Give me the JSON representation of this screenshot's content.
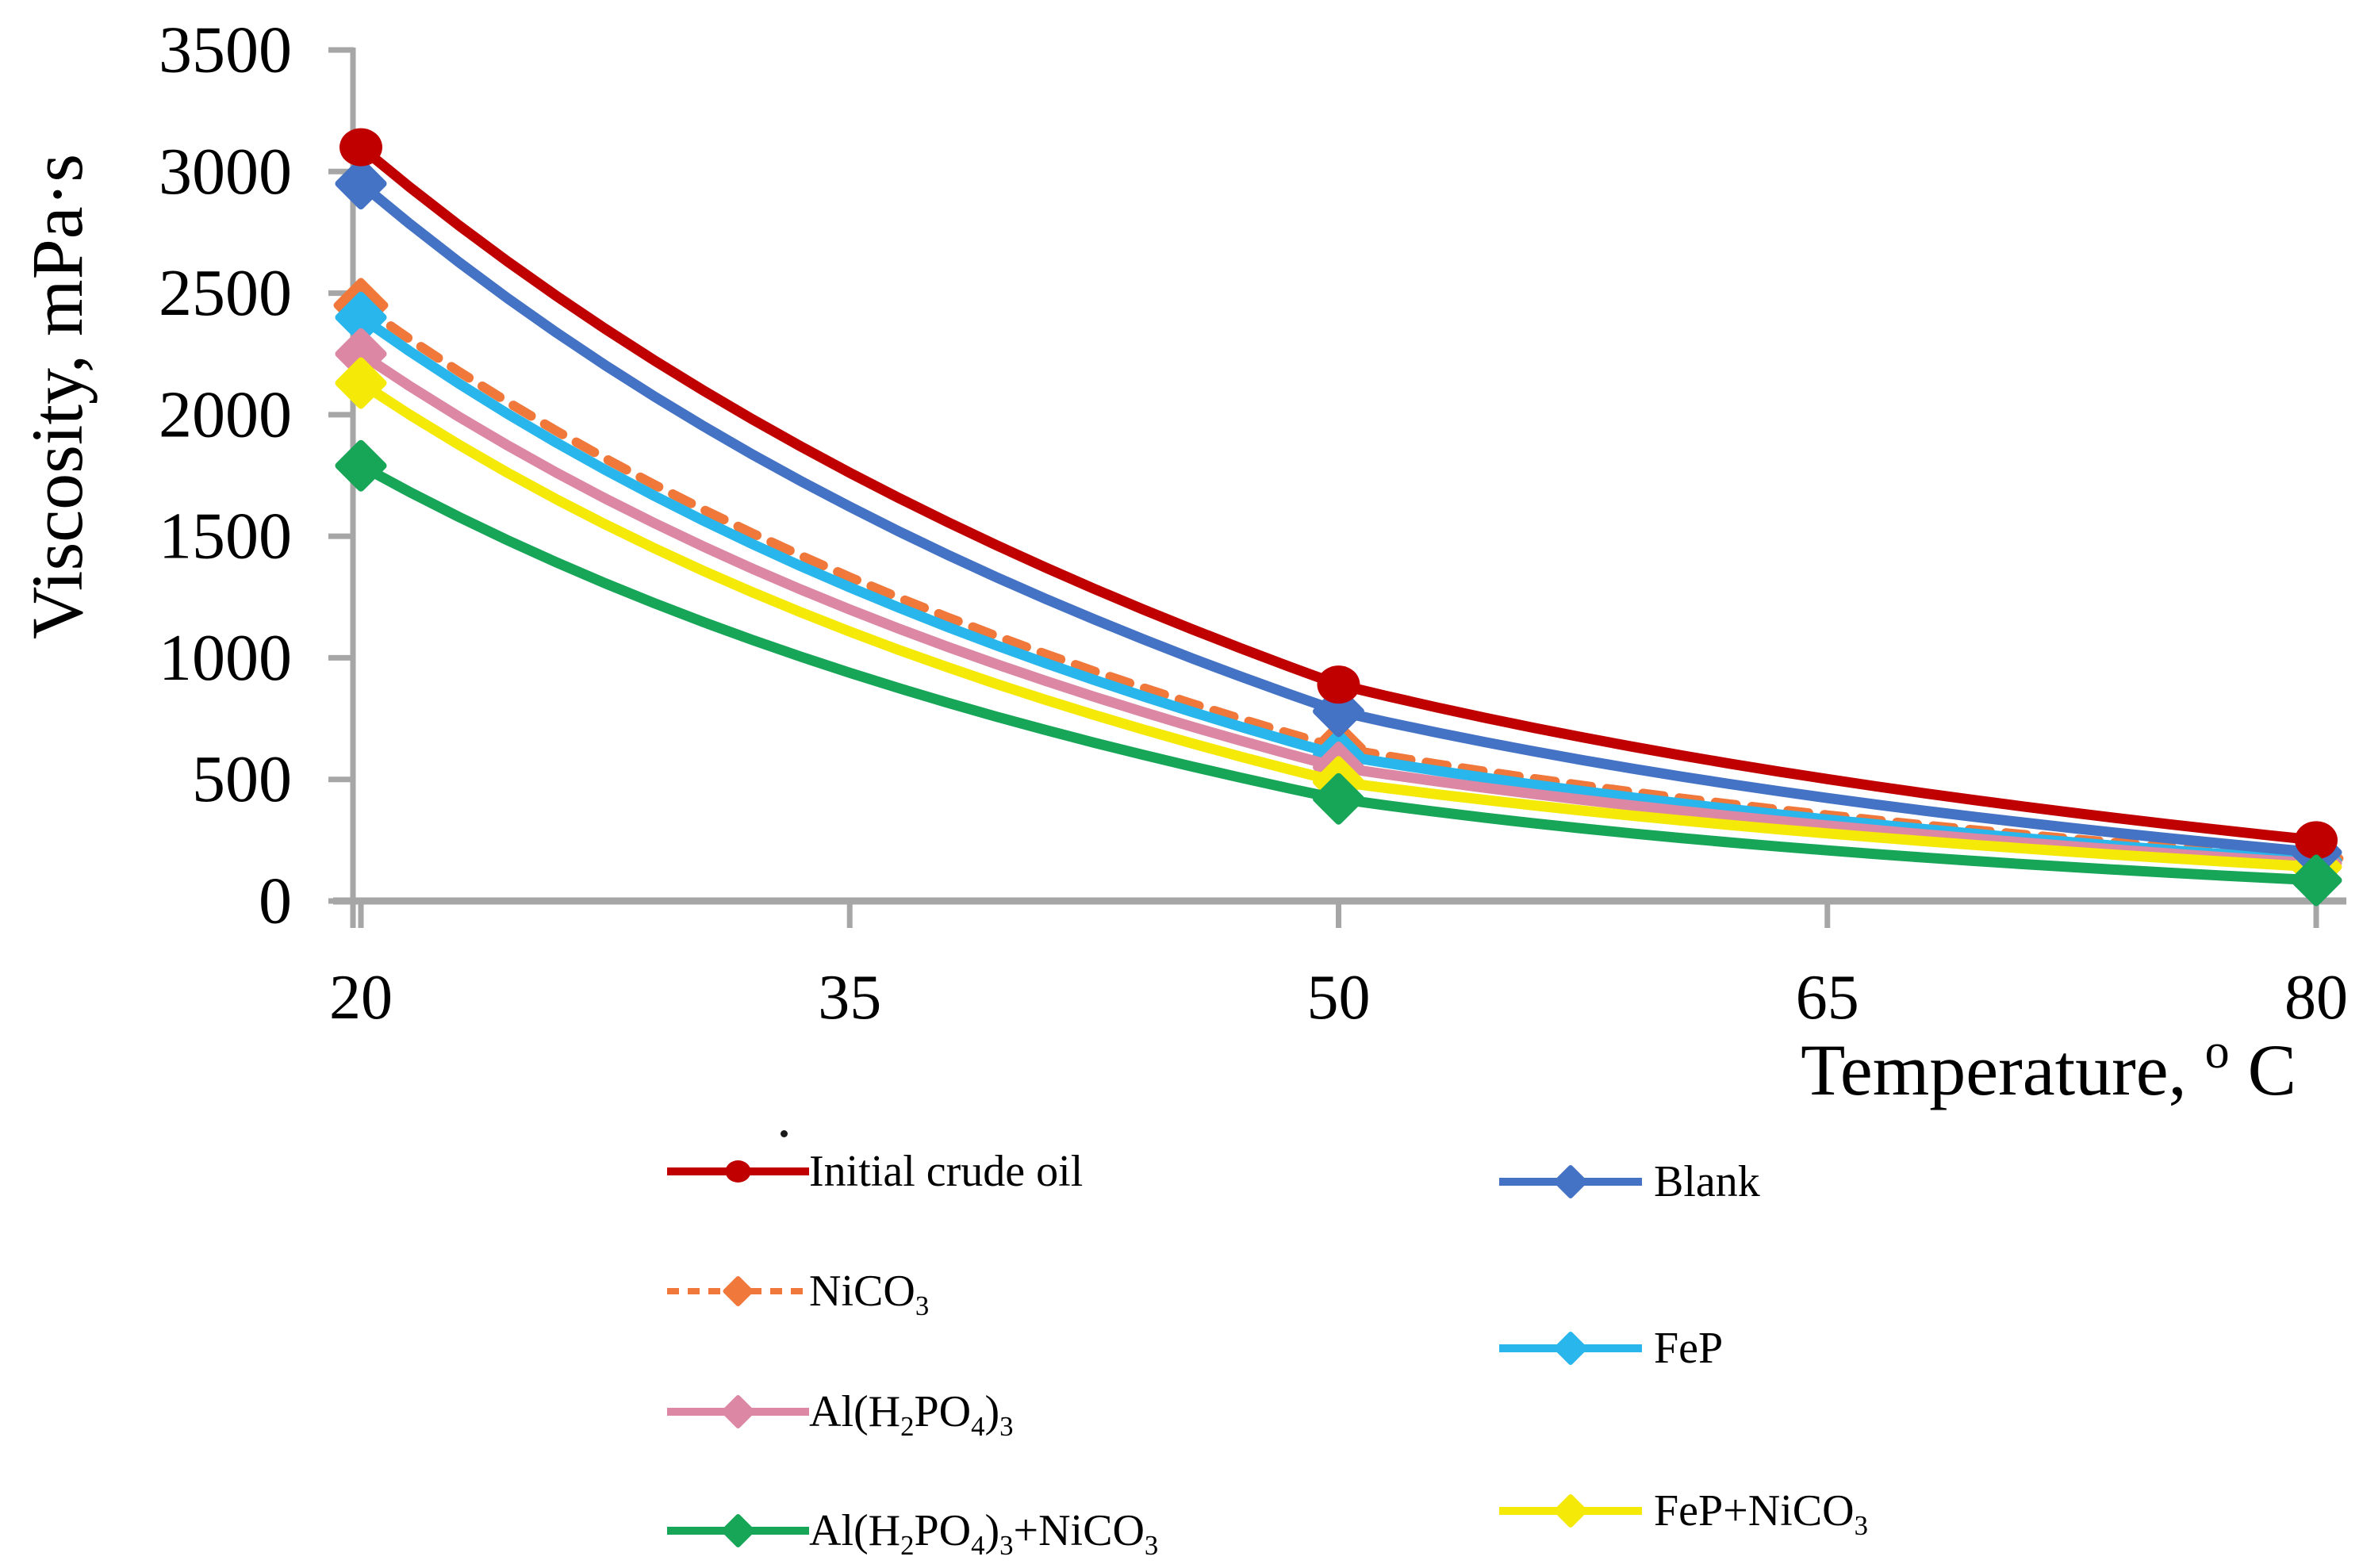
{
  "figure": {
    "background": "#ffffff",
    "axis_color": "#a6a6a6",
    "text_color": "#000000"
  },
  "axes": {
    "y_title": "Viscosity, mPa·s",
    "x_title_text": "Temperature,",
    "x_title_sup": "o",
    "x_title_unit": "C"
  },
  "chart_data": {
    "type": "line",
    "title": "",
    "xlabel": "Temperature,ᵒC",
    "ylabel": "Viscosity, mPa·s",
    "x": [
      20,
      50,
      80
    ],
    "xticks": [
      20,
      35,
      50,
      65,
      80
    ],
    "yticks": [
      0,
      500,
      1000,
      1500,
      2000,
      2500,
      3000,
      3500
    ],
    "xlim": [
      20,
      80
    ],
    "ylim": [
      0,
      3500
    ],
    "grid": false,
    "curve_shape": "smooth exponential-like decay through 3 points",
    "series": [
      {
        "name": "Initial crude oil",
        "color": "#c00000",
        "marker": "circle",
        "line": "solid",
        "values": [
          3100,
          890,
          250
        ]
      },
      {
        "name": "Blank",
        "color": "#4472c4",
        "marker": "diamond",
        "line": "solid",
        "values": [
          2950,
          780,
          200
        ]
      },
      {
        "name": "NiCO₃",
        "color": "#f0783a",
        "marker": "diamond",
        "line": "dashed",
        "values": [
          2450,
          630,
          175
        ]
      },
      {
        "name": "FeP",
        "color": "#29b6ec",
        "marker": "diamond",
        "line": "solid",
        "values": [
          2400,
          600,
          165
        ]
      },
      {
        "name": "Al(H₂PO₄)₃",
        "color": "#dc87a4",
        "marker": "diamond",
        "line": "solid",
        "values": [
          2250,
          550,
          155
        ]
      },
      {
        "name": "FeP+NiCO₃",
        "color": "#f5e908",
        "marker": "diamond",
        "line": "solid",
        "values": [
          2130,
          490,
          140
        ]
      },
      {
        "name": "Al(H₂PO₄)₃+NiCO₃",
        "color": "#17a558",
        "marker": "diamond",
        "line": "solid",
        "values": [
          1790,
          420,
          85
        ]
      }
    ],
    "legend_position": "below chart, two columns",
    "legend": {
      "columns": [
        {
          "items": [
            "Initial crude oil",
            "NiCO₃",
            "Al(H₂PO₄)₃",
            "Al(H₂PO₄)₃+NiCO₃"
          ]
        },
        {
          "items": [
            "Blank",
            "FeP",
            "FeP+NiCO₃"
          ]
        }
      ]
    }
  }
}
